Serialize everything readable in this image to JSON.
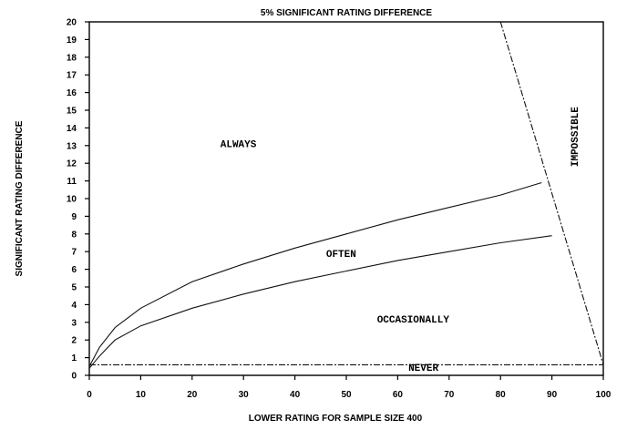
{
  "chart_data": {
    "type": "line",
    "title": "5% SIGNIFICANT RATING DIFFERENCE",
    "xlabel": "LOWER RATING FOR SAMPLE SIZE 400",
    "ylabel": "SIGNIFICANT RATING DIFFERENCE",
    "xlim": [
      0,
      100
    ],
    "ylim": [
      0,
      20
    ],
    "xticks": [
      0,
      10,
      20,
      30,
      40,
      50,
      60,
      70,
      80,
      90,
      100
    ],
    "yticks": [
      0,
      1,
      2,
      3,
      4,
      5,
      6,
      7,
      8,
      9,
      10,
      11,
      12,
      13,
      14,
      15,
      16,
      17,
      18,
      19,
      20
    ],
    "grid": false,
    "series": [
      {
        "values": [
          [
            0,
            0.5
          ],
          [
            2,
            1.6
          ],
          [
            5,
            2.7
          ],
          [
            10,
            3.8
          ],
          [
            20,
            5.3
          ],
          [
            30,
            6.3
          ],
          [
            40,
            7.2
          ],
          [
            50,
            8.0
          ],
          [
            60,
            8.8
          ],
          [
            70,
            9.5
          ],
          [
            80,
            10.2
          ],
          [
            88,
            10.9
          ]
        ]
      },
      {
        "values": [
          [
            0,
            0.4
          ],
          [
            2,
            1.1
          ],
          [
            5,
            2.0
          ],
          [
            10,
            2.8
          ],
          [
            20,
            3.8
          ],
          [
            30,
            4.6
          ],
          [
            40,
            5.3
          ],
          [
            50,
            5.9
          ],
          [
            60,
            6.5
          ],
          [
            70,
            7.0
          ],
          [
            80,
            7.5
          ],
          [
            90,
            7.9
          ]
        ]
      },
      {
        "values": [
          [
            80,
            20
          ],
          [
            100,
            0.6
          ]
        ]
      },
      {
        "values": [
          [
            0,
            0.6
          ],
          [
            100,
            0.6
          ]
        ]
      }
    ],
    "annotations": [
      {
        "text": "ALWAYS",
        "x": 29,
        "y": 12.9
      },
      {
        "text": "OFTEN",
        "x": 49,
        "y": 6.7
      },
      {
        "text": "OCCASIONALLY",
        "x": 63,
        "y": 3.0
      },
      {
        "text": "NEVER",
        "x": 65,
        "y": 0.25
      },
      {
        "text": "IMPOSSIBLE",
        "x": 95,
        "y": 13.5,
        "orientation": "vertical"
      }
    ]
  }
}
